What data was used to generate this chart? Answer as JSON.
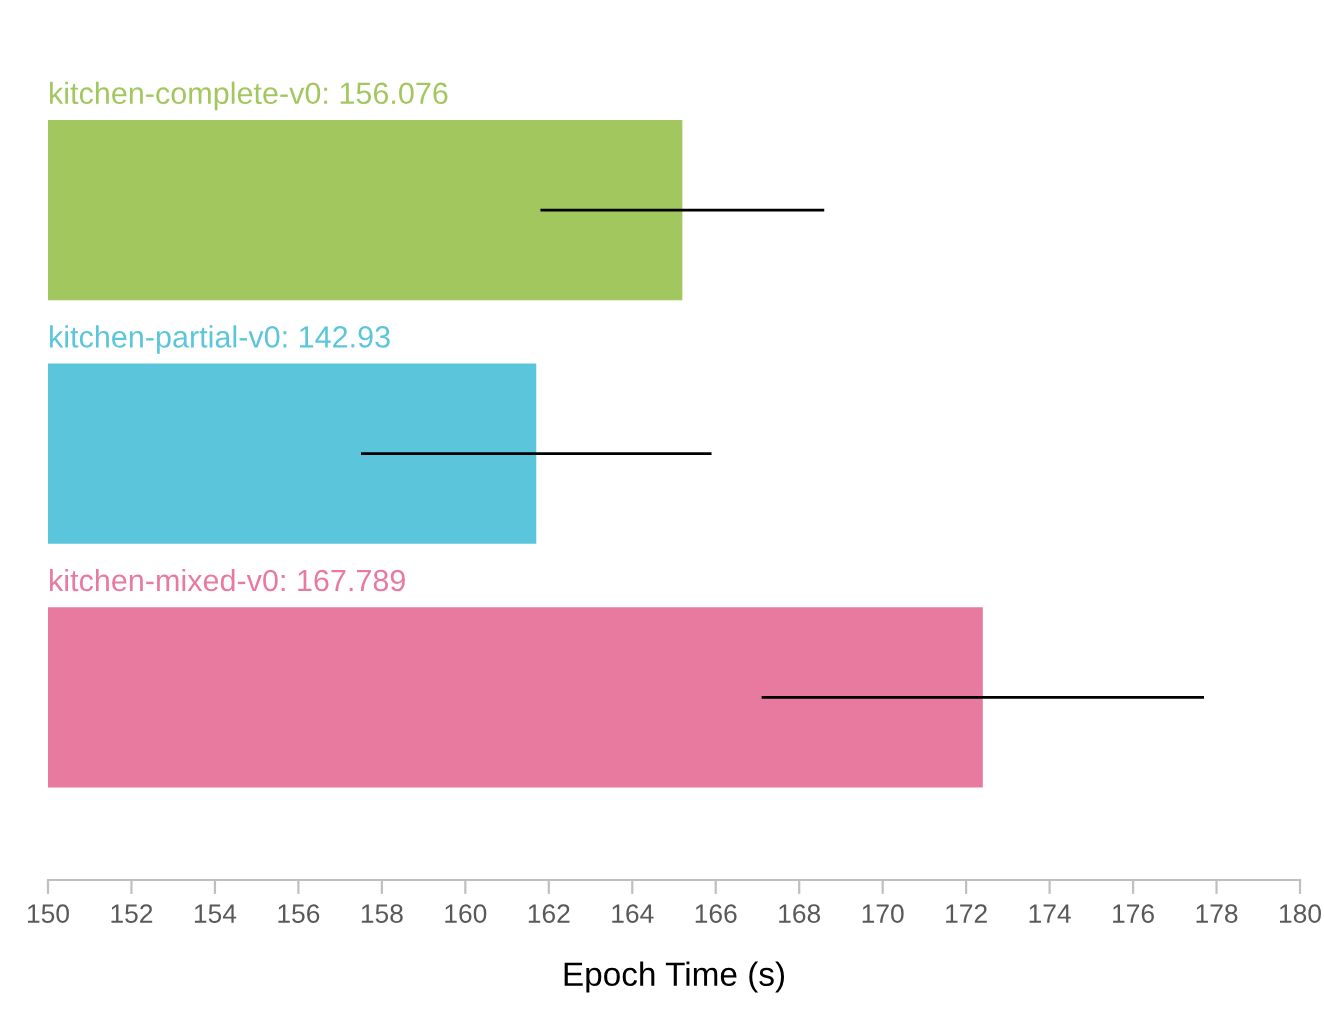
{
  "chart_data": {
    "type": "bar",
    "orientation": "horizontal",
    "categories": [
      "kitchen-complete-v0: 156.076",
      "kitchen-partial-v0: 142.93",
      "kitchen-mixed-v0: 167.789"
    ],
    "values": [
      165.2,
      161.7,
      172.4
    ],
    "errors": [
      3.4,
      4.2,
      5.3
    ],
    "colors": [
      "#a2c75e",
      "#5bc5db",
      "#e87a9f"
    ],
    "xlabel": "Epoch Time (s)",
    "xlim": [
      150,
      180
    ],
    "xticks": [
      150,
      152,
      154,
      156,
      158,
      160,
      162,
      164,
      166,
      168,
      170,
      172,
      174,
      176,
      178,
      180
    ],
    "grid": false,
    "legend": false
  }
}
